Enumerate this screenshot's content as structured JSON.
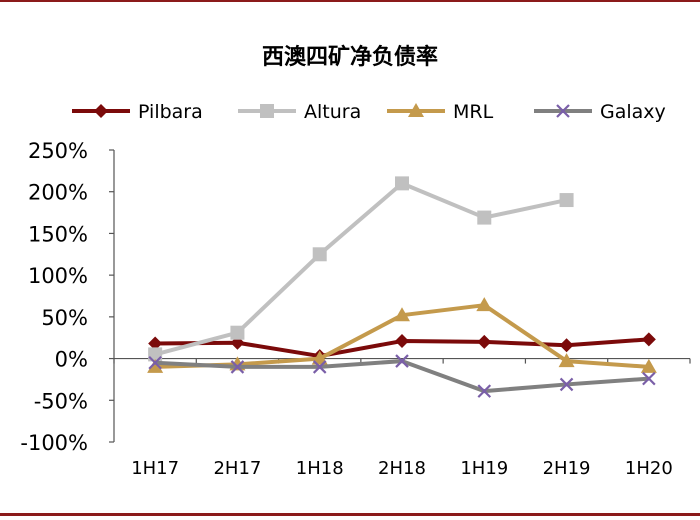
{
  "chart_data": {
    "type": "line",
    "title": "西澳四矿净负债率",
    "categories": [
      "1H17",
      "2H17",
      "1H18",
      "2H18",
      "1H19",
      "2H19",
      "1H20"
    ],
    "ylim": [
      -1.0,
      2.5
    ],
    "yticks": [
      -1.0,
      -0.5,
      0.0,
      0.5,
      1.0,
      1.5,
      2.0,
      2.5
    ],
    "ytick_labels": [
      "-100%",
      "-50%",
      "0%",
      "50%",
      "100%",
      "150%",
      "200%",
      "250%"
    ],
    "legend_position": "top",
    "grid": false,
    "series": [
      {
        "name": "Pilbara",
        "color": "#7b0a0a",
        "marker": "diamond",
        "values": [
          0.18,
          0.19,
          0.03,
          0.21,
          0.2,
          0.16,
          0.23
        ]
      },
      {
        "name": "Altura",
        "color": "#c0c0c0",
        "marker": "square",
        "values": [
          0.05,
          0.31,
          1.25,
          2.1,
          1.69,
          1.9,
          null
        ]
      },
      {
        "name": "MRL",
        "color": "#c49a4c",
        "marker": "triangle",
        "values": [
          -0.1,
          -0.07,
          0.0,
          0.52,
          0.64,
          -0.03,
          -0.1
        ]
      },
      {
        "name": "Galaxy",
        "color": "#808080",
        "marker": "x",
        "values": [
          -0.05,
          -0.1,
          -0.1,
          -0.03,
          -0.39,
          -0.31,
          -0.24
        ]
      }
    ]
  }
}
